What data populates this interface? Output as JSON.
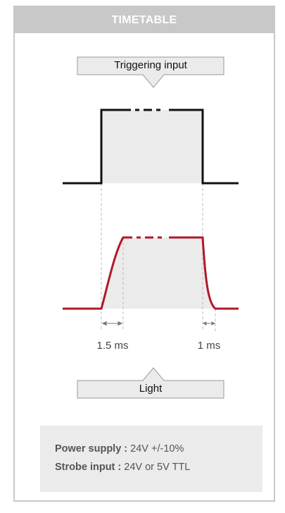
{
  "header": {
    "title": "TIMETABLE"
  },
  "callouts": {
    "top_label": "Triggering input",
    "bottom_label": "Light"
  },
  "timings": {
    "rise": "1.5 ms",
    "fall": "1 ms"
  },
  "specs": [
    {
      "label": "Power supply :",
      "value": "24V +/-10%"
    },
    {
      "label": "Strobe input :",
      "value": "24V or 5V TTL"
    }
  ],
  "colors": {
    "header_bg": "#c8c8c8",
    "trigger_line": "#111111",
    "light_line": "#b0182a",
    "shade": "#ebebeb"
  }
}
